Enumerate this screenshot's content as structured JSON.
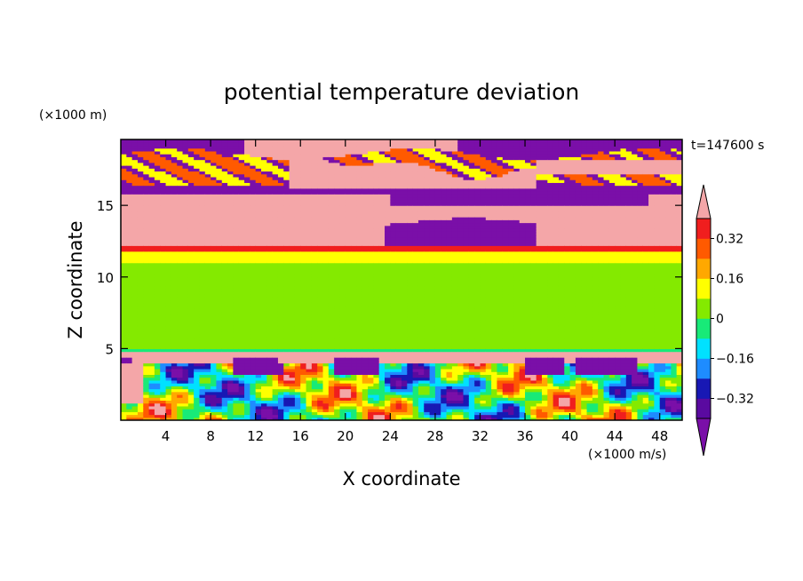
{
  "chart_data": {
    "type": "heatmap",
    "title": "potential temperature deviation",
    "xlabel": "X coordinate",
    "ylabel": "Z coordinate",
    "x_unit": "(×1000 m/s)",
    "y_unit": "(×1000 m)",
    "time_label": "t=147600 s",
    "xlim": [
      0,
      50
    ],
    "ylim": [
      0,
      19.6
    ],
    "x_ticks": [
      4,
      8,
      12,
      16,
      20,
      24,
      28,
      32,
      36,
      40,
      44,
      48
    ],
    "y_ticks": [
      5,
      10,
      15
    ],
    "colorbar": {
      "levels": [
        -0.4,
        -0.32,
        -0.24,
        -0.16,
        -0.08,
        0,
        0.08,
        0.16,
        0.24,
        0.32,
        0.4
      ],
      "tick_labels": [
        "-0.32",
        "-0.16",
        "0",
        "0.16",
        "0.32"
      ],
      "tick_values": [
        -0.32,
        -0.16,
        0,
        0.16,
        0.32
      ],
      "under_color": "#7a0fa8",
      "over_color": "#f4a6a8",
      "colors": [
        "#5a0aa0",
        "#1818b4",
        "#1e8cff",
        "#00e1ff",
        "#18ea78",
        "#84ea00",
        "#ffff00",
        "#ffa800",
        "#ff5a00",
        "#f01e1e"
      ]
    },
    "bands": [
      {
        "z_range": [
          0,
          4.0
        ],
        "description_value": "mixed",
        "dominant": [
          "#00e1ff",
          "#84ea00",
          "#ffff00",
          "#ff5a00"
        ]
      },
      {
        "z_range": [
          4.0,
          5.0
        ],
        "dominant_value": 0.45
      },
      {
        "z_range": [
          5.0,
          11.0
        ],
        "dominant_value": 0.04
      },
      {
        "z_range": [
          11.0,
          12.3
        ],
        "dominant_value": 0.12
      },
      {
        "z_range": [
          12.3,
          15.8
        ],
        "dominant_value": 0.45
      },
      {
        "z_range": [
          15.8,
          19.6
        ],
        "dominant_value": -0.45
      }
    ]
  },
  "colors": {
    "background": "#ffffff",
    "frame": "#000000"
  }
}
